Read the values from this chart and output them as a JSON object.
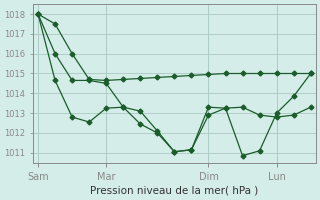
{
  "title": "",
  "xlabel": "Pression niveau de la mer( hPa )",
  "ylabel": "",
  "bg_color": "#d4ede8",
  "grid_color": "#b0cfc8",
  "line_color": "#1a5c2a",
  "marker_color": "#1a5c2a",
  "ylim": [
    1010.5,
    1018.5
  ],
  "yticks": [
    1011,
    1012,
    1013,
    1014,
    1015,
    1016,
    1017,
    1018
  ],
  "day_labels": [
    "Sam",
    "Mar",
    "Dim",
    "Lun"
  ],
  "day_positions": [
    0,
    4,
    10,
    14
  ],
  "series1_x": [
    0,
    1,
    2,
    3,
    4,
    5,
    6,
    7,
    8,
    9,
    10,
    11,
    12,
    13,
    14,
    15,
    16
  ],
  "series1_y": [
    1018.0,
    1017.5,
    1016.0,
    1014.7,
    1014.65,
    1014.7,
    1014.75,
    1014.8,
    1014.85,
    1014.9,
    1014.95,
    1015.0,
    1015.0,
    1015.0,
    1015.0,
    1015.0,
    1015.0
  ],
  "series2_x": [
    0,
    1,
    2,
    3,
    4,
    5,
    6,
    7,
    8,
    9,
    10,
    11,
    12,
    13,
    14,
    15,
    16
  ],
  "series2_y": [
    1018.0,
    1016.0,
    1014.65,
    1014.65,
    1014.5,
    1013.3,
    1013.1,
    1012.1,
    1011.05,
    1011.15,
    1012.9,
    1013.25,
    1013.3,
    1012.9,
    1012.8,
    1012.9,
    1013.3
  ],
  "series3_x": [
    0,
    1,
    2,
    3,
    4,
    5,
    6,
    7,
    8,
    9,
    10,
    11,
    12,
    13,
    14,
    15,
    16
  ],
  "series3_y": [
    1018.0,
    1014.65,
    1012.8,
    1012.55,
    1013.25,
    1013.3,
    1012.45,
    1012.0,
    1011.05,
    1011.15,
    1013.3,
    1013.25,
    1010.85,
    1011.1,
    1013.0,
    1013.85,
    1015.0
  ]
}
